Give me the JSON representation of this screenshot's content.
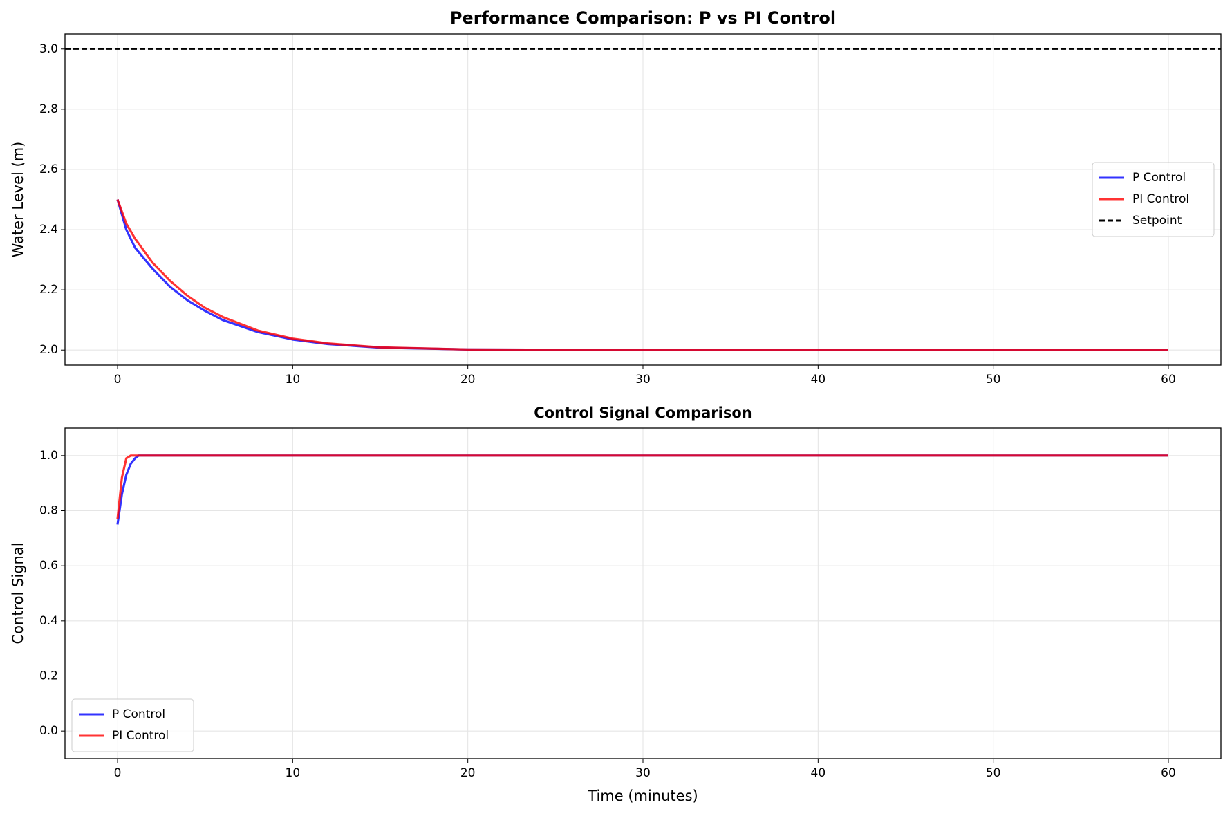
{
  "chart_data": [
    {
      "type": "line",
      "title": "Performance Comparison: P vs PI Control",
      "ylabel": "Water Level (m)",
      "x": [
        0,
        0.5,
        1,
        2,
        3,
        4,
        5,
        6,
        8,
        10,
        12,
        15,
        20,
        30,
        40,
        50,
        60
      ],
      "series": [
        {
          "name": "P Control",
          "color": "#0000ff",
          "values": [
            2.5,
            2.4,
            2.34,
            2.27,
            2.21,
            2.165,
            2.13,
            2.1,
            2.06,
            2.035,
            2.02,
            2.008,
            2.002,
            2.0,
            2.0,
            2.0,
            2.0
          ]
        },
        {
          "name": "PI Control",
          "color": "#ff0000",
          "values": [
            2.5,
            2.42,
            2.37,
            2.29,
            2.23,
            2.18,
            2.14,
            2.11,
            2.065,
            2.038,
            2.022,
            2.009,
            2.002,
            2.0,
            2.0,
            2.0,
            2.0
          ]
        }
      ],
      "hline": {
        "name": "Setpoint",
        "value": 3.0,
        "color": "#000000"
      },
      "alpha": 0.8,
      "xlim": [
        -3,
        63
      ],
      "xticks": [
        0,
        10,
        20,
        30,
        40,
        50,
        60
      ],
      "ylim": [
        1.95,
        3.05
      ],
      "yticks": [
        {
          "value": 2,
          "label": "2.0"
        },
        {
          "value": 2.2,
          "label": "2.2"
        },
        {
          "value": 2.4,
          "label": "2.4"
        },
        {
          "value": 2.6,
          "label": "2.6"
        },
        {
          "value": 2.8,
          "label": "2.8"
        },
        {
          "value": 3,
          "label": "3.0"
        }
      ],
      "grid": true,
      "legend": "center right"
    },
    {
      "type": "line",
      "title": "Control Signal Comparison",
      "xlabel": "Time (minutes)",
      "ylabel": "Control Signal",
      "x": [
        0,
        0.25,
        0.5,
        0.75,
        1,
        1.2,
        60
      ],
      "series": [
        {
          "name": "P Control",
          "color": "#0000ff",
          "values": [
            0.75,
            0.86,
            0.93,
            0.97,
            0.99,
            1.0,
            1.0
          ]
        },
        {
          "name": "PI Control",
          "color": "#ff0000",
          "values": [
            0.77,
            0.92,
            0.99,
            1.0,
            1.0,
            1.0,
            1.0
          ]
        }
      ],
      "alpha": 0.8,
      "xlim": [
        -3,
        63
      ],
      "xticks": [
        0,
        10,
        20,
        30,
        40,
        50,
        60
      ],
      "ylim": [
        -0.1,
        1.1
      ],
      "yticks": [
        {
          "value": 0,
          "label": "0.0"
        },
        {
          "value": 0.2,
          "label": "0.2"
        },
        {
          "value": 0.4,
          "label": "0.4"
        },
        {
          "value": 0.6,
          "label": "0.6"
        },
        {
          "value": 0.8,
          "label": "0.8"
        },
        {
          "value": 1,
          "label": "1.0"
        }
      ],
      "grid": true,
      "legend": "lower left"
    }
  ]
}
